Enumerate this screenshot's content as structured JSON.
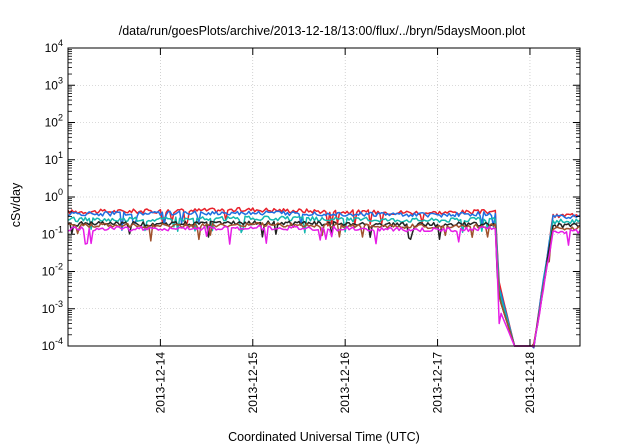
{
  "chart_data": {
    "type": "line",
    "title": "/data/run/goesPlots/archive/2013-12-18/13:00/flux/../bryn/5daysMoon.plot",
    "xlabel": "Coordinated Universal Time (UTC)",
    "ylabel": "cSv/day",
    "y_scale": "log",
    "ylim": [
      0.0001,
      10000
    ],
    "y_ticks": [
      {
        "base": "10",
        "exp": "-4",
        "value": 0.0001
      },
      {
        "base": "10",
        "exp": "-3",
        "value": 0.001
      },
      {
        "base": "10",
        "exp": "-2",
        "value": 0.01
      },
      {
        "base": "10",
        "exp": "-1",
        "value": 0.1
      },
      {
        "base": "10",
        "exp": "0",
        "value": 1
      },
      {
        "base": "10",
        "exp": "1",
        "value": 10
      },
      {
        "base": "10",
        "exp": "2",
        "value": 100
      },
      {
        "base": "10",
        "exp": "3",
        "value": 1000
      },
      {
        "base": "10",
        "exp": "4",
        "value": 10000
      }
    ],
    "xlim": [
      "2013-12-13T00:00",
      "2013-12-18T13:00"
    ],
    "x_ticks": [
      "2013-12-14",
      "2013-12-15",
      "2013-12-16",
      "2013-12-17",
      "2013-12-18"
    ],
    "grid": true,
    "legend": "none",
    "gap": {
      "start": "2013-12-17T16:00",
      "end": "2013-12-18T01:00"
    },
    "series": [
      {
        "color": "#e8202a",
        "x": [
          "2013-12-13T00:00",
          "2013-12-14T00:00",
          "2013-12-15T00:00",
          "2013-12-16T00:00",
          "2013-12-17T00:00",
          "2013-12-17T12:00",
          "2013-12-17T15:00",
          "2013-12-17T16:00",
          "2013-12-17T20:00",
          "2013-12-18T01:00",
          "2013-12-18T06:00",
          "2013-12-18T13:00"
        ],
        "values": [
          0.4,
          0.42,
          0.46,
          0.4,
          0.38,
          0.4,
          0.42,
          0.005,
          0.0001,
          0.0001,
          0.3,
          0.35
        ]
      },
      {
        "color": "#1e6fe0",
        "x": [
          "2013-12-13T00:00",
          "2013-12-14T00:00",
          "2013-12-15T00:00",
          "2013-12-16T00:00",
          "2013-12-17T00:00",
          "2013-12-17T12:00",
          "2013-12-17T15:00",
          "2013-12-17T16:00",
          "2013-12-17T20:00",
          "2013-12-18T01:00",
          "2013-12-18T06:00",
          "2013-12-18T13:00"
        ],
        "values": [
          0.35,
          0.36,
          0.38,
          0.35,
          0.33,
          0.35,
          0.36,
          0.004,
          0.0001,
          0.0001,
          0.3,
          0.3
        ]
      },
      {
        "color": "#14b8b0",
        "x": [
          "2013-12-13T00:00",
          "2013-12-14T00:00",
          "2013-12-15T00:00",
          "2013-12-16T00:00",
          "2013-12-17T00:00",
          "2013-12-17T12:00",
          "2013-12-17T15:00",
          "2013-12-17T16:00",
          "2013-12-17T20:00",
          "2013-12-18T01:00",
          "2013-12-18T06:00",
          "2013-12-18T13:00"
        ],
        "values": [
          0.25,
          0.25,
          0.27,
          0.25,
          0.24,
          0.25,
          0.26,
          0.003,
          0.0001,
          0.0001,
          0.22,
          0.22
        ]
      },
      {
        "color": "#222222",
        "x": [
          "2013-12-13T00:00",
          "2013-12-14T00:00",
          "2013-12-15T00:00",
          "2013-12-16T00:00",
          "2013-12-17T00:00",
          "2013-12-17T12:00",
          "2013-12-17T15:00",
          "2013-12-17T16:00",
          "2013-12-17T20:00",
          "2013-12-18T01:00",
          "2013-12-18T06:00",
          "2013-12-18T13:00"
        ],
        "values": [
          0.19,
          0.19,
          0.2,
          0.19,
          0.18,
          0.19,
          0.19,
          0.002,
          0.0001,
          0.0001,
          0.17,
          0.17
        ]
      },
      {
        "color": "#a0522d",
        "x": [
          "2013-12-13T00:00",
          "2013-12-14T00:00",
          "2013-12-15T00:00",
          "2013-12-16T00:00",
          "2013-12-17T00:00",
          "2013-12-17T12:00",
          "2013-12-17T15:00",
          "2013-12-17T16:00",
          "2013-12-17T20:00",
          "2013-12-18T01:00",
          "2013-12-18T06:00",
          "2013-12-18T13:00"
        ],
        "values": [
          0.17,
          0.17,
          0.18,
          0.17,
          0.16,
          0.17,
          0.17,
          0.002,
          0.0001,
          0.0001,
          0.15,
          0.15
        ]
      },
      {
        "color": "#e61ee6",
        "x": [
          "2013-12-13T00:00",
          "2013-12-14T00:00",
          "2013-12-15T00:00",
          "2013-12-16T00:00",
          "2013-12-17T00:00",
          "2013-12-17T12:00",
          "2013-12-17T15:00",
          "2013-12-17T16:00",
          "2013-12-17T20:00",
          "2013-12-18T01:00",
          "2013-12-18T06:00",
          "2013-12-18T13:00"
        ],
        "values": [
          0.14,
          0.14,
          0.15,
          0.14,
          0.13,
          0.14,
          0.14,
          0.001,
          0.0001,
          0.0001,
          0.12,
          0.12
        ]
      }
    ]
  }
}
